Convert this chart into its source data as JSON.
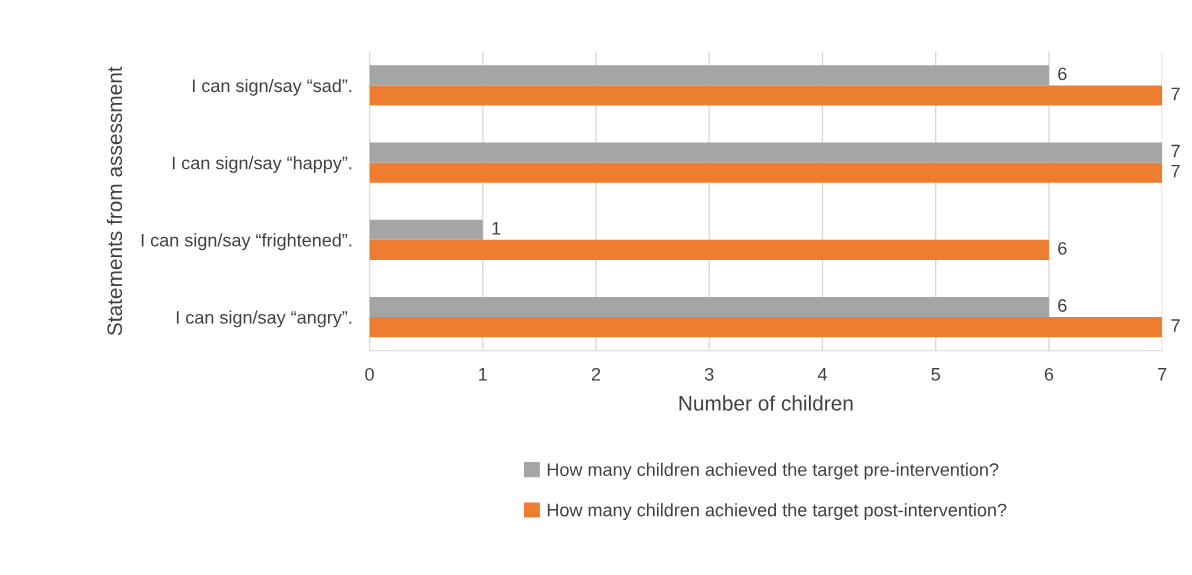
{
  "chart_data": {
    "type": "bar",
    "orientation": "horizontal",
    "categories": [
      "I can sign/say “sad”.",
      "I can sign/say “happy”.",
      "I can sign/say “frightened”.",
      "I can sign/say “angry”."
    ],
    "series": [
      {
        "name": "How many children achieved the target pre-intervention?",
        "color": "#a5a5a5",
        "values": [
          6,
          7,
          1,
          6
        ]
      },
      {
        "name": "How many children achieved the target post-intervention?",
        "color": "#ed7d31",
        "values": [
          7,
          7,
          6,
          7
        ]
      }
    ],
    "xlabel": "Number of children",
    "ylabel": "Statements from assessment",
    "xlim": [
      0,
      7
    ],
    "xticks": [
      0,
      1,
      2,
      3,
      4,
      5,
      6,
      7
    ],
    "grid": "x",
    "legend": "bottom",
    "data_labels": true
  }
}
